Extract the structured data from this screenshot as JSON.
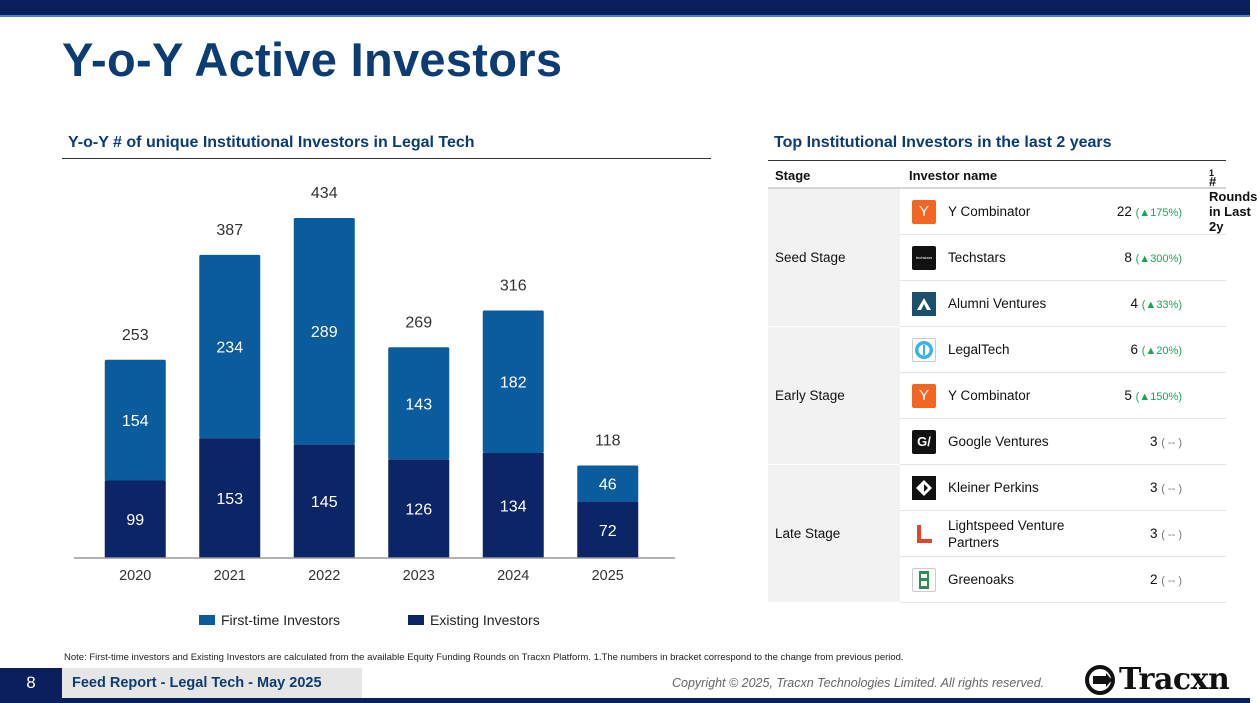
{
  "page": {
    "title": "Y-o-Y Active Investors",
    "page_number": "8",
    "report_label": "Feed Report - Legal Tech - May 2025",
    "copyright": "Copyright © 2025, Tracxn Technologies Limited. All rights reserved.",
    "brand": "Tracxn",
    "note": "Note: First-time investors and Existing Investors are calculated from the available Equity Funding Rounds on Tracxn Platform. 1.The numbers in bracket correspond to the change from previous period."
  },
  "left_section": {
    "title": "Y-o-Y  # of unique Institutional Investors in Legal Tech"
  },
  "chart_data": {
    "type": "bar",
    "stacked": true,
    "title": "Y-o-Y  # of unique Institutional Investors in Legal Tech",
    "categories": [
      "2020",
      "2021",
      "2022",
      "2023",
      "2024",
      "2025"
    ],
    "series": [
      {
        "name": "Existing Investors",
        "color": "#0b2566",
        "values": [
          99,
          153,
          145,
          126,
          134,
          72
        ]
      },
      {
        "name": "First-time Investors",
        "color": "#0b5c9c",
        "values": [
          154,
          234,
          289,
          143,
          182,
          46
        ]
      }
    ],
    "totals": [
      253,
      387,
      434,
      269,
      316,
      118
    ],
    "ylim": [
      0,
      434
    ],
    "legend_position": "bottom",
    "grid": false
  },
  "legend": {
    "first_time": "First-time Investors",
    "existing": "Existing Investors",
    "first_time_color": "#0b5c9c",
    "existing_color": "#0b2566"
  },
  "right_section": {
    "title": "Top Institutional Investors in the last 2 years",
    "headers": {
      "stage": "Stage",
      "investor": "Investor name",
      "rounds": "# Rounds in Last 2y",
      "rounds_sup": "1"
    },
    "groups": [
      {
        "stage": "Seed Stage",
        "rows": [
          {
            "logo": "Y",
            "icon": "y-combinator-logo",
            "name": "Y Combinator",
            "rounds": "22",
            "change": "(▲175%)",
            "dir": "up"
          },
          {
            "logo": "techstars",
            "icon": "techstars-logo",
            "name": "Techstars",
            "rounds": "8",
            "change": "(▲300%)",
            "dir": "up"
          },
          {
            "logo": "",
            "icon": "alumni-ventures-logo",
            "name": "Alumni Ventures",
            "rounds": "4",
            "change": "(▲33%)",
            "dir": "up"
          }
        ]
      },
      {
        "stage": "Early Stage",
        "rows": [
          {
            "logo": "",
            "icon": "legaltech-logo",
            "name": "LegalTech",
            "rounds": "6",
            "change": "(▲20%)",
            "dir": "up"
          },
          {
            "logo": "Y",
            "icon": "y-combinator-logo",
            "name": "Y Combinator",
            "rounds": "5",
            "change": "(▲150%)",
            "dir": "up"
          },
          {
            "logo": "G/",
            "icon": "google-ventures-logo",
            "name": "Google Ventures",
            "rounds": "3",
            "change": "( -- )",
            "dir": "na"
          }
        ]
      },
      {
        "stage": "Late Stage",
        "rows": [
          {
            "logo": "",
            "icon": "kleiner-perkins-logo",
            "name": "Kleiner Perkins",
            "rounds": "3",
            "change": "( -- )",
            "dir": "na"
          },
          {
            "logo": "",
            "icon": "lightspeed-logo",
            "name": "Lightspeed Venture Partners",
            "rounds": "3",
            "change": "( -- )",
            "dir": "na"
          },
          {
            "logo": "",
            "icon": "greenoaks-logo",
            "name": "Greenoaks",
            "rounds": "2",
            "change": "( -- )",
            "dir": "na"
          }
        ]
      }
    ]
  }
}
